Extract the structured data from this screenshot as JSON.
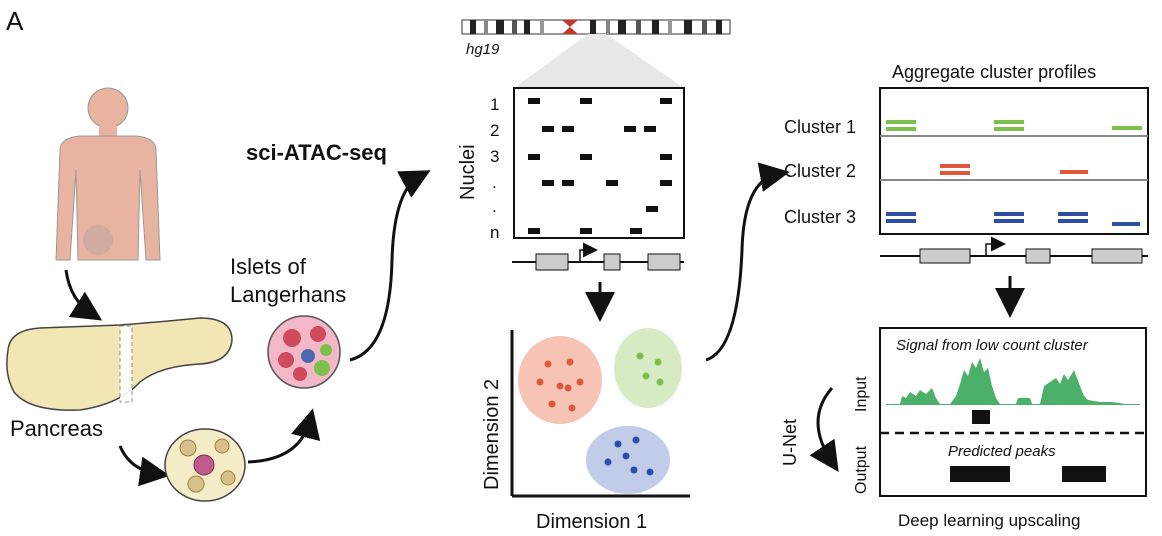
{
  "panel_label": "A",
  "labels": {
    "pancreas": "Pancreas",
    "islets_line1": "Islets of",
    "islets_line2": "Langerhans",
    "method": "sci-ATAC-seq",
    "genome": "hg19",
    "nuclei_axis": "Nuclei",
    "row_labels": [
      "1",
      "2",
      "3",
      ".",
      ".",
      "n"
    ],
    "dim1": "Dimension 1",
    "dim2": "Dimension 2",
    "aggregate_title": "Aggregate cluster profiles",
    "clusters": [
      "Cluster 1",
      "Cluster 2",
      "Cluster 3"
    ],
    "unet": "U-Net",
    "input": "Input",
    "output": "Output",
    "signal_title": "Signal from low count cluster",
    "predicted": "Predicted peaks",
    "deep_learning": "Deep learning upscaling"
  },
  "colors": {
    "cluster1": "#7cbf4a",
    "cluster2": "#e0583a",
    "cluster3": "#2e4fa8",
    "signal": "#4caf6a",
    "skin": "#e8b3a0",
    "pancreas": "#f3e6b5"
  }
}
